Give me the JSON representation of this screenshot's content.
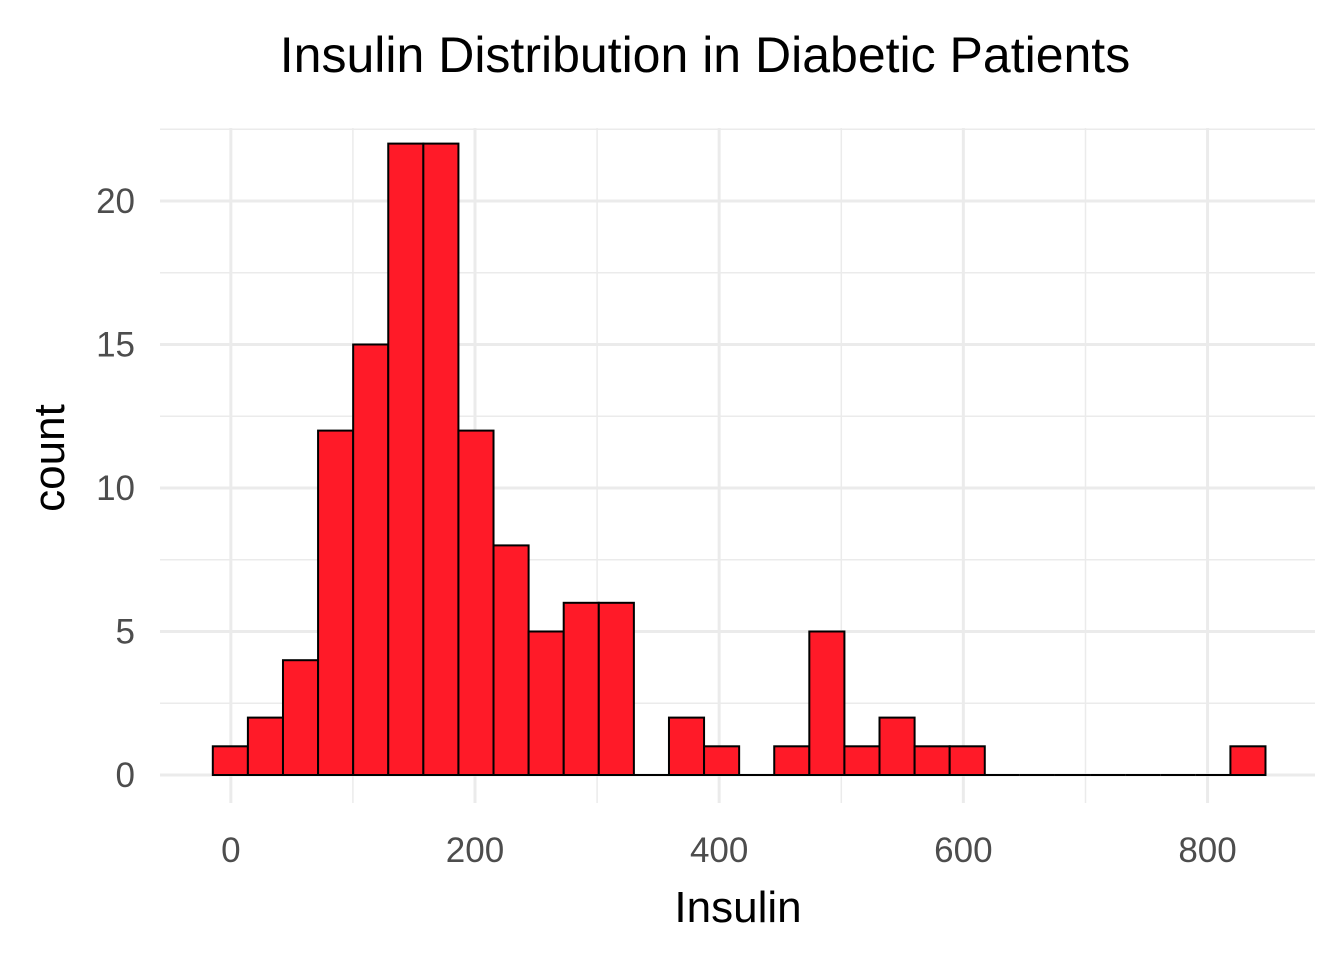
{
  "chart_data": {
    "type": "bar",
    "subtype": "histogram",
    "title": "Insulin Distribution in Diabetic Patients",
    "xlabel": "Insulin",
    "ylabel": "count",
    "xlim": [
      -58,
      888
    ],
    "ylim": [
      0,
      23.1
    ],
    "xticks": [
      0,
      200,
      400,
      600,
      800
    ],
    "yticks": [
      0,
      5,
      10,
      15,
      20
    ],
    "grid": true,
    "bin_start": -14.75,
    "bin_width": 28.74,
    "counts": [
      1,
      2,
      4,
      12,
      15,
      22,
      22,
      12,
      8,
      5,
      6,
      6,
      0,
      2,
      1,
      0,
      1,
      5,
      1,
      2,
      1,
      1,
      0,
      0,
      0,
      0,
      0,
      0,
      0,
      1
    ],
    "colors": {
      "fill": "#FF1A28",
      "edge": "#000000",
      "grid": "#EBEBEB",
      "tick_text": "#4D4D4D"
    }
  }
}
